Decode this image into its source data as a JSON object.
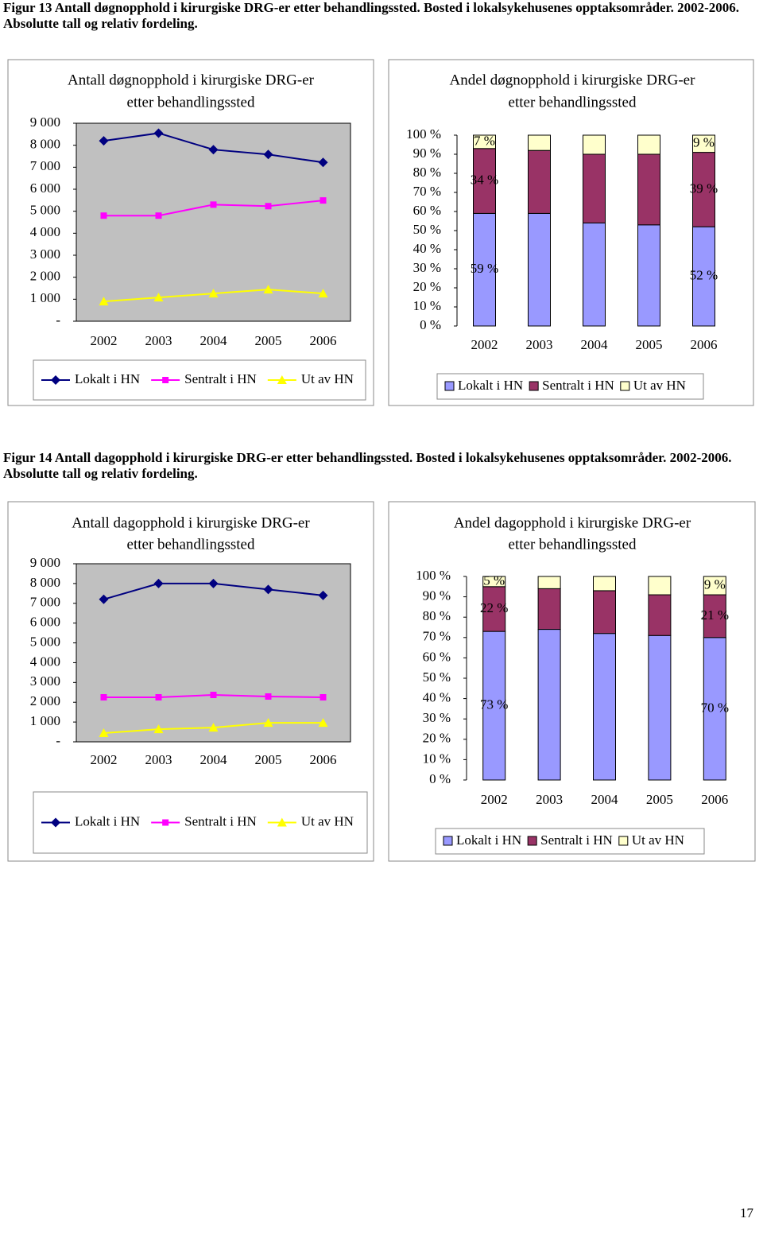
{
  "captions": [
    "Figur 13 Antall døgnopphold i kirurgiske DRG-er etter behandlingssted. Bosted i lokalsykehusenes opptaksområder. 2002-2006. Absolutte tall og relativ fordeling.",
    "Figur 14 Antall dagopphold i kirurgiske DRG-er etter behandlingssted. Bosted i lokalsykehusenes opptaksområder. 2002-2006. Absolutte tall og relativ fordeling."
  ],
  "page_number": "17",
  "chart_data": [
    {
      "type": "line",
      "title": [
        "Antall døgnopphold i kirurgiske DRG-er",
        "etter behandlingssted"
      ],
      "categories": [
        "2002",
        "2003",
        "2004",
        "2005",
        "2006"
      ],
      "series": [
        {
          "name": "Lokalt i HN",
          "color": "#000080",
          "marker": "diamond",
          "values": [
            8200,
            8550,
            7800,
            7580,
            7220
          ]
        },
        {
          "name": "Sentralt i HN",
          "color": "#ff00ff",
          "marker": "square",
          "values": [
            4800,
            4800,
            5300,
            5230,
            5490
          ]
        },
        {
          "name": "Ut av HN",
          "color": "#ffff00",
          "marker": "triangle",
          "values": [
            900,
            1080,
            1260,
            1440,
            1260
          ]
        }
      ],
      "ylim": [
        0,
        9000
      ],
      "yticks": [
        {
          "value": 0,
          "label": "-"
        },
        {
          "value": 1000,
          "label": "1 000"
        },
        {
          "value": 2000,
          "label": "2 000"
        },
        {
          "value": 3000,
          "label": "3 000"
        },
        {
          "value": 4000,
          "label": "4 000"
        },
        {
          "value": 5000,
          "label": "5 000"
        },
        {
          "value": 6000,
          "label": "6 000"
        },
        {
          "value": 7000,
          "label": "7 000"
        },
        {
          "value": 8000,
          "label": "8 000"
        },
        {
          "value": 9000,
          "label": "9 000"
        }
      ],
      "plot_background": "#c0c0c0",
      "grid": false,
      "legend": "bottom"
    },
    {
      "type": "stacked_bar",
      "title": [
        "Andel døgnopphold i kirurgiske DRG-er",
        "etter behandlingssted"
      ],
      "categories": [
        "2002",
        "2003",
        "2004",
        "2005",
        "2006"
      ],
      "series": [
        {
          "name": "Lokalt i HN",
          "color": "#9999ff",
          "values": [
            59,
            59,
            54,
            53,
            52
          ],
          "value_labels": [
            "59 %",
            null,
            null,
            null,
            "52 %"
          ]
        },
        {
          "name": "Sentralt i HN",
          "color": "#993366",
          "values": [
            34,
            33,
            36,
            37,
            39
          ],
          "value_labels": [
            "34 %",
            null,
            null,
            null,
            "39 %"
          ]
        },
        {
          "name": "Ut av HN",
          "color": "#ffffcc",
          "values": [
            7,
            8,
            10,
            10,
            9
          ],
          "value_labels": [
            "7 %",
            null,
            null,
            null,
            "9 %"
          ]
        }
      ],
      "ylim": [
        0,
        100
      ],
      "yticks": [
        {
          "value": 0,
          "label": "0 %"
        },
        {
          "value": 10,
          "label": "10 %"
        },
        {
          "value": 20,
          "label": "20 %"
        },
        {
          "value": 30,
          "label": "30 %"
        },
        {
          "value": 40,
          "label": "40 %"
        },
        {
          "value": 50,
          "label": "50 %"
        },
        {
          "value": 60,
          "label": "60 %"
        },
        {
          "value": 70,
          "label": "70 %"
        },
        {
          "value": 80,
          "label": "80 %"
        },
        {
          "value": 90,
          "label": "90 %"
        },
        {
          "value": 100,
          "label": "100 %"
        }
      ],
      "plot_background": "#ffffff",
      "grid": false,
      "legend": "bottom"
    },
    {
      "type": "line",
      "title": [
        "Antall dagopphold i kirurgiske DRG-er",
        "etter behandlingssted"
      ],
      "categories": [
        "2002",
        "2003",
        "2004",
        "2005",
        "2006"
      ],
      "series": [
        {
          "name": "Lokalt i HN",
          "color": "#000080",
          "marker": "diamond",
          "values": [
            7200,
            8000,
            8000,
            7700,
            7400
          ]
        },
        {
          "name": "Sentralt i HN",
          "color": "#ff00ff",
          "marker": "square",
          "values": [
            2250,
            2250,
            2370,
            2290,
            2250
          ]
        },
        {
          "name": "Ut av HN",
          "color": "#ffff00",
          "marker": "triangle",
          "values": [
            440,
            640,
            720,
            960,
            960
          ]
        }
      ],
      "ylim": [
        0,
        9000
      ],
      "yticks": [
        {
          "value": 0,
          "label": "-"
        },
        {
          "value": 1000,
          "label": "1 000"
        },
        {
          "value": 2000,
          "label": "2 000"
        },
        {
          "value": 3000,
          "label": "3 000"
        },
        {
          "value": 4000,
          "label": "4 000"
        },
        {
          "value": 5000,
          "label": "5 000"
        },
        {
          "value": 6000,
          "label": "6 000"
        },
        {
          "value": 7000,
          "label": "7 000"
        },
        {
          "value": 8000,
          "label": "8 000"
        },
        {
          "value": 9000,
          "label": "9 000"
        }
      ],
      "plot_background": "#c0c0c0",
      "grid": false,
      "legend": "bottom"
    },
    {
      "type": "stacked_bar",
      "title": [
        "Andel dagopphold i kirurgiske DRG-er",
        "etter behandlingssted"
      ],
      "categories": [
        "2002",
        "2003",
        "2004",
        "2005",
        "2006"
      ],
      "series": [
        {
          "name": "Lokalt i HN",
          "color": "#9999ff",
          "values": [
            73,
            74,
            72,
            71,
            70
          ],
          "value_labels": [
            "73 %",
            null,
            null,
            null,
            "70 %"
          ]
        },
        {
          "name": "Sentralt i HN",
          "color": "#993366",
          "values": [
            22,
            20,
            21,
            20,
            21
          ],
          "value_labels": [
            "22 %",
            null,
            null,
            null,
            "21 %"
          ]
        },
        {
          "name": "Ut av HN",
          "color": "#ffffcc",
          "values": [
            5,
            6,
            7,
            9,
            9
          ],
          "value_labels": [
            "5 %",
            null,
            null,
            null,
            "9 %"
          ]
        }
      ],
      "ylim": [
        0,
        100
      ],
      "yticks": [
        {
          "value": 0,
          "label": "0 %"
        },
        {
          "value": 10,
          "label": "10 %"
        },
        {
          "value": 20,
          "label": "20 %"
        },
        {
          "value": 30,
          "label": "30 %"
        },
        {
          "value": 40,
          "label": "40 %"
        },
        {
          "value": 50,
          "label": "50 %"
        },
        {
          "value": 60,
          "label": "60 %"
        },
        {
          "value": 70,
          "label": "70 %"
        },
        {
          "value": 80,
          "label": "80 %"
        },
        {
          "value": 90,
          "label": "90 %"
        },
        {
          "value": 100,
          "label": "100 %"
        }
      ],
      "plot_background": "#ffffff",
      "grid": false,
      "legend": "bottom"
    }
  ]
}
